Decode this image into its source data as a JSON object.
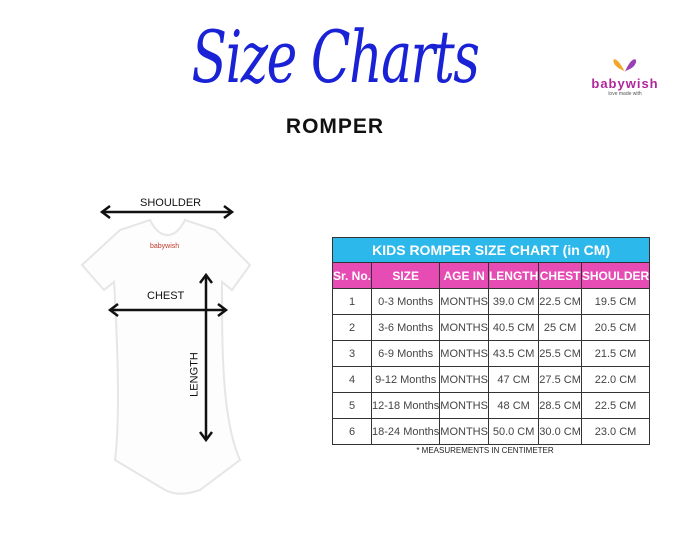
{
  "header": {
    "title": "Size Charts",
    "subtitle": "ROMPER"
  },
  "logo": {
    "name": "babywish",
    "tagline": "love made with"
  },
  "garment": {
    "print": "babywish",
    "labels": {
      "shoulder": "SHOULDER",
      "chest": "CHEST",
      "length": "LENGTH"
    }
  },
  "table": {
    "title": "KIDS ROMPER SIZE CHART (in CM)",
    "headers": [
      "Sr. No.",
      "SIZE",
      "AGE IN",
      "LENGTH",
      "CHEST",
      "SHOULDER"
    ],
    "rows": [
      [
        "1",
        "0-3 Months",
        "MONTHS",
        "39.0 CM",
        "22.5 CM",
        "19.5 CM"
      ],
      [
        "2",
        "3-6 Months",
        "MONTHS",
        "40.5 CM",
        "25 CM",
        "20.5 CM"
      ],
      [
        "3",
        "6-9 Months",
        "MONTHS",
        "43.5 CM",
        "25.5 CM",
        "21.5 CM"
      ],
      [
        "4",
        "9-12 Months",
        "MONTHS",
        "47 CM",
        "27.5 CM",
        "22.0 CM"
      ],
      [
        "5",
        "12-18 Months",
        "MONTHS",
        "48 CM",
        "28.5 CM",
        "22.5 CM"
      ],
      [
        "6",
        "18-24 Months",
        "MONTHS",
        "50.0 CM",
        "30.0 CM",
        "23.0 CM"
      ]
    ],
    "note": "* MEASUREMENTS IN CENTIMETER"
  },
  "colors": {
    "title": "#1a22d6",
    "table_title_bg": "#2cb8ea",
    "table_header_bg": "#e64cb4"
  }
}
